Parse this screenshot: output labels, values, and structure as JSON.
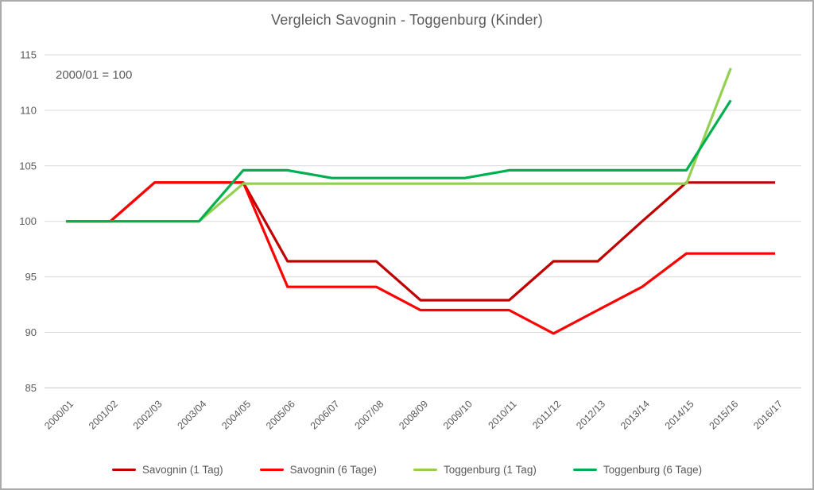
{
  "chart_data": {
    "type": "line",
    "title": "Vergleich Savognin - Toggenburg (Kinder)",
    "annotation": "2000/01 = 100",
    "xlabel": "",
    "ylabel": "",
    "ylim": [
      85,
      115
    ],
    "yticks": [
      85,
      90,
      95,
      100,
      105,
      110,
      115
    ],
    "grid": true,
    "legend_position": "bottom",
    "categories": [
      "2000/01",
      "2001/02",
      "2002/03",
      "2003/04",
      "2004/05",
      "2005/06",
      "2006/07",
      "2007/08",
      "2008/09",
      "2009/10",
      "2010/11",
      "2011/12",
      "2012/13",
      "2013/14",
      "2014/15",
      "2015/16",
      "2016/17"
    ],
    "series": [
      {
        "name": "Savognin (1 Tag)",
        "color": "#C00000",
        "values": [
          100,
          100,
          103.5,
          103.5,
          103.5,
          96.4,
          96.4,
          96.4,
          92.9,
          92.9,
          92.9,
          96.4,
          96.4,
          100,
          103.5,
          103.5,
          103.5
        ]
      },
      {
        "name": "Savognin (6 Tage)",
        "color": "#FF0000",
        "values": [
          100,
          100,
          103.5,
          103.5,
          103.5,
          94.1,
          94.1,
          94.1,
          92,
          92,
          92,
          89.9,
          92,
          94.1,
          97.1,
          97.1,
          97.1
        ]
      },
      {
        "name": "Toggenburg (1 Tag)",
        "color": "#92D050",
        "values": [
          100,
          100,
          100,
          100,
          103.4,
          103.4,
          103.4,
          103.4,
          103.4,
          103.4,
          103.4,
          103.4,
          103.4,
          103.4,
          103.4,
          113.8,
          null
        ]
      },
      {
        "name": "Toggenburg (6 Tage)",
        "color": "#00B050",
        "values": [
          100,
          100,
          100,
          100,
          104.6,
          104.6,
          103.9,
          103.9,
          103.9,
          103.9,
          104.6,
          104.6,
          104.6,
          104.6,
          104.6,
          110.9,
          null
        ]
      }
    ]
  },
  "colors": {
    "text": "#595959",
    "gridline": "#D9D9D9",
    "axis_line": "#C9C9C9",
    "border": "#ABABAB",
    "background": "#FFFFFF"
  }
}
